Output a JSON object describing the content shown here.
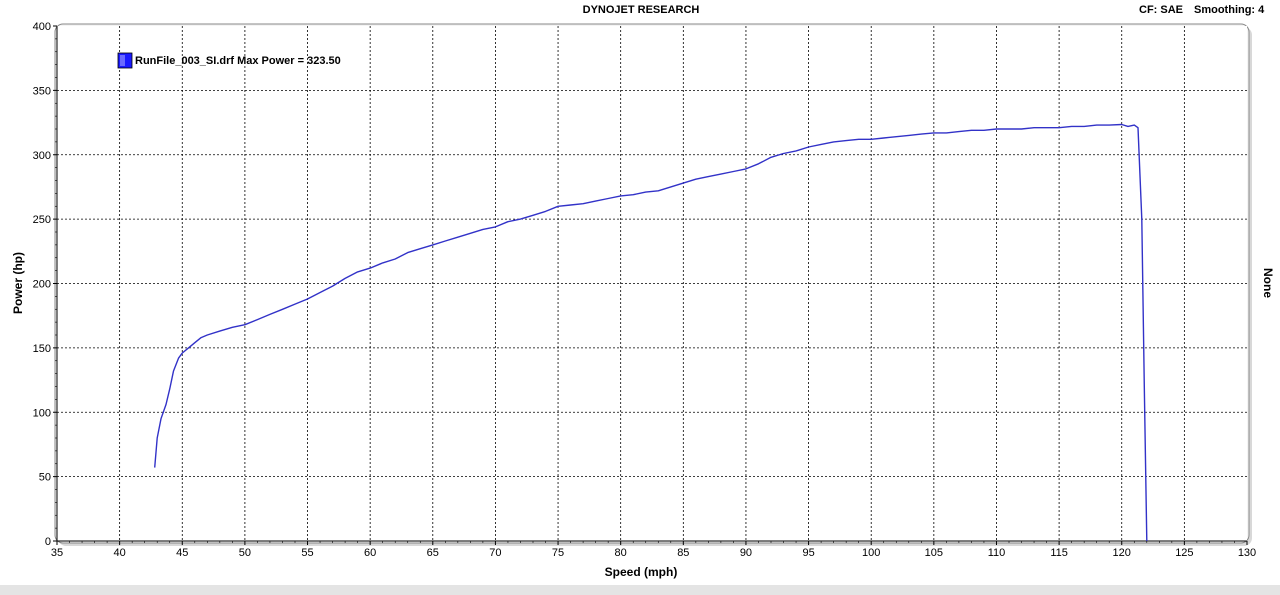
{
  "header": {
    "title": "DYNOJET RESEARCH",
    "correction": "CF: SAE",
    "smoothing": "Smoothing: 4"
  },
  "colors": {
    "plot_background": "#ffffff",
    "frame_background": "#ececec",
    "grid": "#000000",
    "series": "#3232c8",
    "legend_swatch": "#1a1aff"
  },
  "chart_data": {
    "type": "line",
    "xlabel": "Speed (mph)",
    "ylabel": "Power (hp)",
    "right_label": "None",
    "xlim": [
      35,
      130
    ],
    "ylim": [
      0,
      400
    ],
    "x_ticks": [
      35,
      40,
      45,
      50,
      55,
      60,
      65,
      70,
      75,
      80,
      85,
      90,
      95,
      100,
      105,
      110,
      115,
      120,
      125,
      130
    ],
    "y_ticks": [
      0,
      50,
      100,
      150,
      200,
      250,
      300,
      350,
      400
    ],
    "grid": true,
    "grid_style": "dashed",
    "legend_position": "top-left",
    "series": [
      {
        "name": "RunFile_003_SI.drf Max Power = 323.50",
        "points": [
          [
            42.8,
            57
          ],
          [
            43.0,
            80
          ],
          [
            43.3,
            95
          ],
          [
            43.7,
            106
          ],
          [
            44.0,
            118
          ],
          [
            44.3,
            132
          ],
          [
            44.7,
            142
          ],
          [
            45.0,
            146
          ],
          [
            45.5,
            150
          ],
          [
            46.0,
            154
          ],
          [
            46.5,
            158
          ],
          [
            47.0,
            160
          ],
          [
            48.0,
            163
          ],
          [
            49.0,
            166
          ],
          [
            50.0,
            168
          ],
          [
            51.0,
            172
          ],
          [
            52.0,
            176
          ],
          [
            53.0,
            180
          ],
          [
            54.0,
            184
          ],
          [
            55.0,
            188
          ],
          [
            56.0,
            193
          ],
          [
            57.0,
            198
          ],
          [
            58.0,
            204
          ],
          [
            59.0,
            209
          ],
          [
            60.0,
            212
          ],
          [
            61.0,
            216
          ],
          [
            62.0,
            219
          ],
          [
            63.0,
            224
          ],
          [
            64.0,
            227
          ],
          [
            65.0,
            230
          ],
          [
            66.0,
            233
          ],
          [
            67.0,
            236
          ],
          [
            68.0,
            239
          ],
          [
            69.0,
            242
          ],
          [
            70.0,
            244
          ],
          [
            71.0,
            248
          ],
          [
            72.0,
            250
          ],
          [
            73.0,
            253
          ],
          [
            74.0,
            256
          ],
          [
            75.0,
            260
          ],
          [
            76.0,
            261
          ],
          [
            77.0,
            262
          ],
          [
            78.0,
            264
          ],
          [
            79.0,
            266
          ],
          [
            80.0,
            268
          ],
          [
            81.0,
            269
          ],
          [
            82.0,
            271
          ],
          [
            83.0,
            272
          ],
          [
            84.0,
            275
          ],
          [
            85.0,
            278
          ],
          [
            86.0,
            281
          ],
          [
            87.0,
            283
          ],
          [
            88.0,
            285
          ],
          [
            89.0,
            287
          ],
          [
            90.0,
            289
          ],
          [
            91.0,
            293
          ],
          [
            92.0,
            298
          ],
          [
            93.0,
            301
          ],
          [
            94.0,
            303
          ],
          [
            95.0,
            306
          ],
          [
            96.0,
            308
          ],
          [
            97.0,
            310
          ],
          [
            98.0,
            311
          ],
          [
            99.0,
            312
          ],
          [
            100.0,
            312
          ],
          [
            101.0,
            313
          ],
          [
            102.0,
            314
          ],
          [
            103.0,
            315
          ],
          [
            104.0,
            316
          ],
          [
            105.0,
            317
          ],
          [
            106.0,
            317
          ],
          [
            107.0,
            318
          ],
          [
            108.0,
            319
          ],
          [
            109.0,
            319
          ],
          [
            110.0,
            320
          ],
          [
            111.0,
            320
          ],
          [
            112.0,
            320
          ],
          [
            113.0,
            321
          ],
          [
            114.0,
            321
          ],
          [
            115.0,
            321
          ],
          [
            116.0,
            322
          ],
          [
            117.0,
            322
          ],
          [
            118.0,
            323
          ],
          [
            119.0,
            323
          ],
          [
            120.0,
            323.5
          ],
          [
            120.5,
            322
          ],
          [
            121.0,
            323
          ],
          [
            121.3,
            321
          ],
          [
            121.6,
            250
          ],
          [
            121.8,
            120
          ],
          [
            122.0,
            0
          ]
        ]
      }
    ]
  }
}
